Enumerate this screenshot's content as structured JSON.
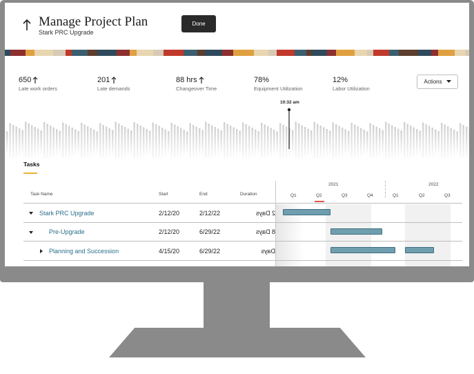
{
  "header": {
    "title": "Manage Project Plan",
    "subtitle": "Stark PRC Upgrade",
    "done_label": "Done"
  },
  "metrics": [
    {
      "value": "650",
      "label": "Late work orders",
      "trend": "up"
    },
    {
      "value": "201",
      "label": "Late demands",
      "trend": "up"
    },
    {
      "value": "88 hrs",
      "label": "Changeover Time",
      "trend": "up"
    },
    {
      "value": "78%",
      "label": "Equipment Utilization",
      "trend": "none"
    },
    {
      "value": "12%",
      "label": "Labor Utilization",
      "trend": "none"
    }
  ],
  "actions_label": "Actions",
  "timeline": {
    "current_time": "10:32 am"
  },
  "tasks": {
    "section_label": "Tasks",
    "columns": [
      "Task Name",
      "Start",
      "End",
      "Duration"
    ],
    "years": [
      "2021",
      "2022"
    ],
    "quarters": [
      "Q1",
      "Q2",
      "Q3",
      "Q4",
      "Q1",
      "Q2",
      "Q3"
    ],
    "rows": [
      {
        "name": "Stark PRC Upgrade",
        "start": "2/12/20",
        "end": "2/12/22",
        "duration": "2 Days"
      },
      {
        "name": "Pre-Upgrade",
        "start": "2/12/20",
        "end": "6/29/22",
        "duration": "8 Days"
      },
      {
        "name": "Planning and Succession",
        "start": "4/15/20",
        "end": "6/29/22",
        "duration": "Days"
      }
    ]
  },
  "colors": {
    "accent": "#e8b23a",
    "link": "#2a6f8a",
    "gantt_bar": "#6f9eaf",
    "marker": "#d9534f"
  }
}
